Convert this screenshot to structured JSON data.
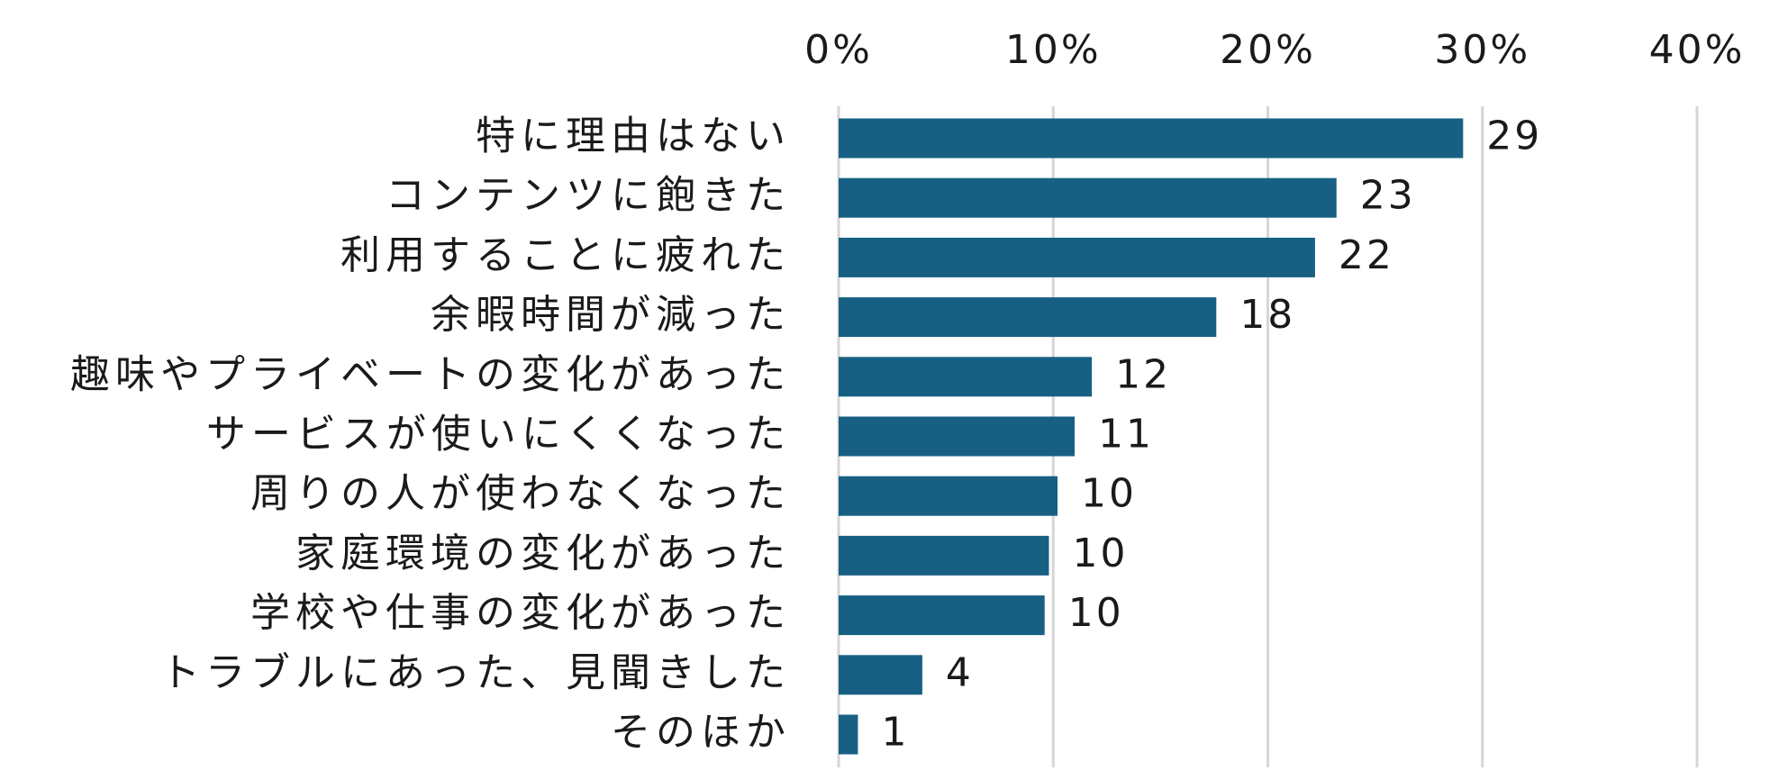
{
  "chart_data": {
    "type": "bar",
    "orientation": "horizontal",
    "title": "",
    "xlabel": "",
    "ylabel": "",
    "categories": [
      "特に理由はない",
      "コンテンツに飽きた",
      "利用することに疲れた",
      "余暇時間が減った",
      "趣味やプライベートの変化があった",
      "サービスが使いにくくなった",
      "周りの人が使わなくなった",
      "家庭環境の変化があった",
      "学校や仕事の変化があった",
      "トラブルにあった、見聞きした",
      "そのほか"
    ],
    "values": [
      29,
      23,
      22,
      18,
      12,
      11,
      10,
      10,
      10,
      4,
      1
    ],
    "bar_values_percent": [
      29.1,
      23.2,
      22.2,
      17.6,
      11.8,
      11.0,
      10.2,
      9.8,
      9.6,
      3.9,
      0.9
    ],
    "data_labels": [
      "29",
      "23",
      "22",
      "18",
      "12",
      "11",
      "10",
      "10",
      "10",
      "4",
      "1"
    ],
    "x_axis": {
      "position": "top",
      "range": [
        0,
        40
      ],
      "ticks": [
        0,
        10,
        20,
        30,
        40
      ],
      "tick_labels": [
        "0%",
        "10%",
        "20%",
        "30%",
        "40%"
      ]
    },
    "grid": true,
    "legend": "none",
    "bar_color": "#176083",
    "gridline_color": "#d6d6d6",
    "text_color": "#1a1a1a"
  }
}
